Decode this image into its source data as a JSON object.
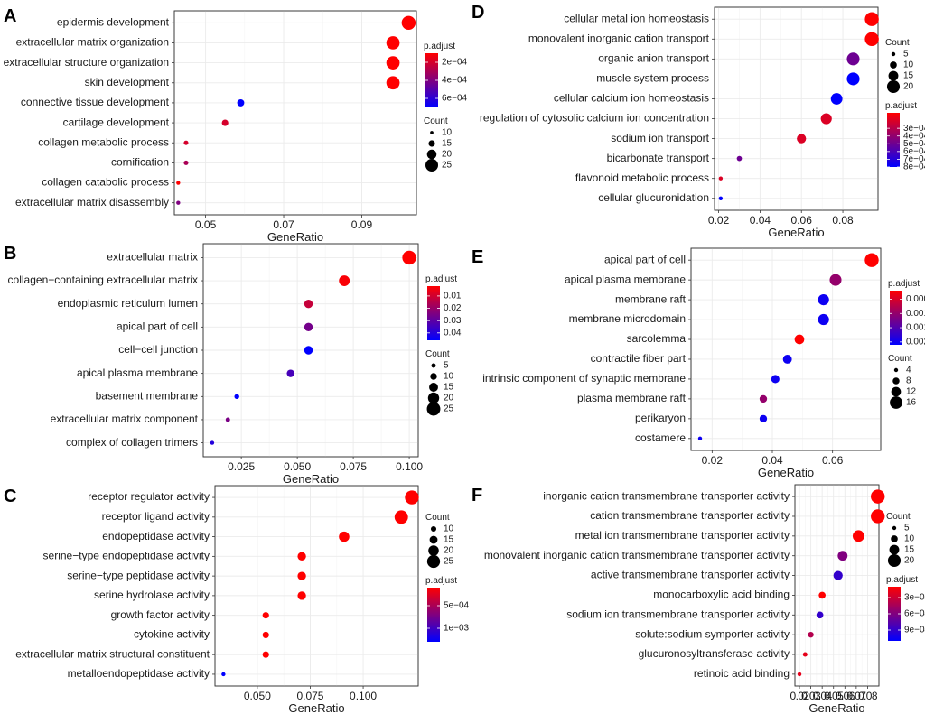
{
  "colors": {
    "high": "#ff0000",
    "low": "#0000ff"
  },
  "chart_data": [
    {
      "type": "scatter",
      "panel": "A",
      "categories": [
        "epidermis development",
        "extracellular matrix organization",
        "extracellular structure organization",
        "skin development",
        "connective tissue development",
        "cartilage development",
        "collagen metabolic process",
        "cornification",
        "collagen catabolic process",
        "extracellular matrix disassembly"
      ],
      "x": [
        0.102,
        0.098,
        0.098,
        0.098,
        0.059,
        0.055,
        0.045,
        0.045,
        0.043,
        0.043
      ],
      "padj": [
        0.0001,
        0.0001,
        0.0001,
        0.0001,
        0.0007,
        0.0002,
        0.0002,
        0.0003,
        0.0001,
        0.0004
      ],
      "count": [
        27,
        26,
        26,
        26,
        16,
        15,
        12,
        12,
        11,
        11
      ],
      "xlabel": "GeneRatio",
      "xlim": [
        0.042,
        0.104
      ],
      "xticks": [
        0.05,
        0.07,
        0.09
      ],
      "xtick_labels": [
        "0.05",
        "0.07",
        "0.09"
      ],
      "legend_order": [
        "color",
        "size"
      ],
      "color_legend": {
        "title": "p.adjust",
        "min": 0.0001,
        "max": 0.0007,
        "labels": [
          "2e−04",
          "4e−04",
          "6e−04"
        ],
        "values": [
          0.0002,
          0.0004,
          0.0006
        ]
      },
      "size_legend": {
        "title": "Count",
        "labels": [
          "10",
          "15",
          "20",
          "25"
        ],
        "values": [
          10,
          15,
          20,
          25
        ],
        "min": 11,
        "max": 27
      }
    },
    {
      "type": "scatter",
      "panel": "B",
      "categories": [
        "extracellular matrix",
        "collagen−containing extracellular matrix",
        "endoplasmic reticulum lumen",
        "apical part of cell",
        "cell−cell junction",
        "apical plasma membrane",
        "basement membrane",
        "extracellular matrix component",
        "complex of collagen trimers"
      ],
      "x": [
        0.1,
        0.071,
        0.055,
        0.055,
        0.055,
        0.047,
        0.023,
        0.019,
        0.012
      ],
      "padj": [
        0.002,
        0.003,
        0.012,
        0.026,
        0.046,
        0.034,
        0.046,
        0.025,
        0.04
      ],
      "count": [
        26,
        19,
        14,
        14,
        14,
        12,
        6,
        5,
        4
      ],
      "xlabel": "GeneRatio",
      "xlim": [
        0.008,
        0.104
      ],
      "xticks": [
        0.025,
        0.05,
        0.075,
        0.1
      ],
      "xtick_labels": [
        "0.025",
        "0.050",
        "0.075",
        "0.100"
      ],
      "legend_order": [
        "color",
        "size"
      ],
      "color_legend": {
        "title": "p.adjust",
        "min": 0.002,
        "max": 0.046,
        "labels": [
          "0.01",
          "0.02",
          "0.03",
          "0.04"
        ],
        "values": [
          0.01,
          0.02,
          0.03,
          0.04
        ]
      },
      "size_legend": {
        "title": "Count",
        "labels": [
          "5",
          "10",
          "15",
          "20",
          "25"
        ],
        "values": [
          5,
          10,
          15,
          20,
          25
        ],
        "min": 4,
        "max": 26
      }
    },
    {
      "type": "scatter",
      "panel": "C",
      "categories": [
        "receptor regulator activity",
        "receptor ligand activity",
        "endopeptidase activity",
        "serine−type endopeptidase activity",
        "serine−type peptidase activity",
        "serine hydrolase activity",
        "growth factor activity",
        "cytokine activity",
        "extracellular matrix structural constituent",
        "metalloendopeptidase activity"
      ],
      "x": [
        0.123,
        0.118,
        0.091,
        0.071,
        0.071,
        0.071,
        0.054,
        0.054,
        0.054,
        0.034
      ],
      "padj": [
        0.0001,
        0.0001,
        0.0001,
        0.0001,
        0.0001,
        0.0001,
        0.0001,
        0.0001,
        0.0001,
        0.0013
      ],
      "count": [
        27,
        26,
        20,
        16,
        16,
        16,
        12,
        12,
        12,
        7
      ],
      "xlabel": "GeneRatio",
      "xlim": [
        0.03,
        0.126
      ],
      "xticks": [
        0.05,
        0.075,
        0.1
      ],
      "xtick_labels": [
        "0.050",
        "0.075",
        "0.100"
      ],
      "legend_order": [
        "size",
        "color"
      ],
      "color_legend": {
        "title": "p.adjust",
        "min": 0.0001,
        "max": 0.0013,
        "labels": [
          "5e−04",
          "1e−03"
        ],
        "values": [
          0.0005,
          0.001
        ]
      },
      "size_legend": {
        "title": "Count",
        "labels": [
          "10",
          "15",
          "20",
          "25"
        ],
        "values": [
          10,
          15,
          20,
          25
        ],
        "min": 7,
        "max": 27
      }
    },
    {
      "type": "scatter",
      "panel": "D",
      "categories": [
        "cellular metal ion homeostasis",
        "monovalent inorganic cation transport",
        "organic anion transport",
        "muscle system process",
        "cellular calcium ion homeostasis",
        "regulation of cytosolic calcium ion concentration",
        "sodium ion transport",
        "bicarbonate transport",
        "flavonoid metabolic process",
        "cellular glucuronidation"
      ],
      "x": [
        0.094,
        0.094,
        0.085,
        0.085,
        0.077,
        0.072,
        0.06,
        0.03,
        0.021,
        0.021
      ],
      "padj": [
        0.0001,
        0.0001,
        0.0005,
        0.0008,
        0.0008,
        0.0002,
        0.0002,
        0.0005,
        0.0002,
        0.0008
      ],
      "count": [
        22,
        22,
        20,
        20,
        18,
        17,
        14,
        7,
        5,
        5
      ],
      "xlabel": "GeneRatio",
      "xlim": [
        0.018,
        0.097
      ],
      "xticks": [
        0.02,
        0.04,
        0.06,
        0.08
      ],
      "xtick_labels": [
        "0.02",
        "0.04",
        "0.06",
        "0.08"
      ],
      "legend_order": [
        "size",
        "color"
      ],
      "color_legend": {
        "title": "p.adjust",
        "min": 0.0001,
        "max": 0.0008,
        "labels": [
          "3e−04",
          "4e−04",
          "5e−04",
          "6e−04",
          "7e−04",
          "8e−04"
        ],
        "values": [
          0.0003,
          0.0004,
          0.0005,
          0.0006,
          0.0007,
          0.0008
        ]
      },
      "size_legend": {
        "title": "Count",
        "labels": [
          "5",
          "10",
          "15",
          "20"
        ],
        "values": [
          5,
          10,
          15,
          20
        ],
        "min": 5,
        "max": 22
      }
    },
    {
      "type": "scatter",
      "panel": "E",
      "categories": [
        "apical part of cell",
        "apical plasma membrane",
        "membrane raft",
        "membrane microdomain",
        "sarcolemma",
        "contractile fiber part",
        "intrinsic component of synaptic membrane",
        "plasma membrane raft",
        "perikaryon",
        "costamere"
      ],
      "x": [
        0.073,
        0.061,
        0.057,
        0.057,
        0.049,
        0.045,
        0.041,
        0.037,
        0.037,
        0.016
      ],
      "padj": [
        0.0002,
        0.001,
        0.002,
        0.002,
        0.0002,
        0.002,
        0.002,
        0.001,
        0.002,
        0.002
      ],
      "count": [
        18,
        15,
        14,
        14,
        12,
        11,
        10,
        9,
        9,
        4
      ],
      "xlabel": "GeneRatio",
      "xlim": [
        0.013,
        0.076
      ],
      "xticks": [
        0.02,
        0.04,
        0.06
      ],
      "xtick_labels": [
        "0.02",
        "0.04",
        "0.06"
      ],
      "legend_order": [
        "color",
        "size"
      ],
      "color_legend": {
        "title": "p.adjust",
        "min": 0.0002,
        "max": 0.0021,
        "labels": [
          "0.0005",
          "0.0010",
          "0.0015",
          "0.0020"
        ],
        "values": [
          0.0005,
          0.001,
          0.0015,
          0.002
        ]
      },
      "size_legend": {
        "title": "Count",
        "labels": [
          "4",
          "8",
          "12",
          "16"
        ],
        "values": [
          4,
          8,
          12,
          16
        ],
        "min": 4,
        "max": 18
      }
    },
    {
      "type": "scatter",
      "panel": "F",
      "categories": [
        "inorganic cation transmembrane transporter activity",
        "cation transmembrane transporter activity",
        "metal ion transmembrane transporter activity",
        "monovalent inorganic cation transmembrane transporter activity",
        "active transmembrane transporter activity",
        "monocarboxylic acid binding",
        "sodium ion transmembrane transporter activity",
        "solute:sodium symporter activity",
        "glucuronosyltransferase activity",
        "retinoic acid binding"
      ],
      "x": [
        0.089,
        0.089,
        0.072,
        0.058,
        0.054,
        0.04,
        0.038,
        0.03,
        0.025,
        0.02
      ],
      "padj": [
        0.0001,
        0.0001,
        0.0001,
        0.0006,
        0.0009,
        0.0001,
        0.0009,
        0.0004,
        0.0002,
        0.0002
      ],
      "count": [
        22,
        22,
        18,
        15,
        14,
        10,
        10,
        8,
        6,
        5
      ],
      "xlabel": "GeneRatio",
      "xlim": [
        0.016,
        0.09
      ],
      "xticks": [
        0.02,
        0.03,
        0.04,
        0.05,
        0.06,
        0.07,
        0.08
      ],
      "xtick_labels": [
        "0.02",
        "0.03",
        "0.04",
        "0.05",
        "0.06",
        "0.07",
        "0.08"
      ],
      "legend_order": [
        "size",
        "color"
      ],
      "color_legend": {
        "title": "p.adjust",
        "min": 0.0001,
        "max": 0.0011,
        "labels": [
          "3e−04",
          "6e−04",
          "9e−04"
        ],
        "values": [
          0.0003,
          0.0006,
          0.0009
        ]
      },
      "size_legend": {
        "title": "Count",
        "labels": [
          "5",
          "10",
          "15",
          "20"
        ],
        "values": [
          5,
          10,
          15,
          20
        ],
        "min": 5,
        "max": 22
      }
    }
  ]
}
